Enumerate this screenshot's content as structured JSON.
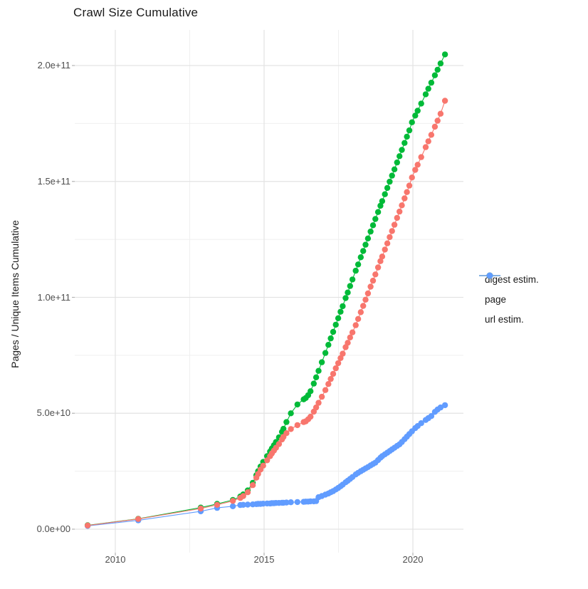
{
  "title": "Crawl Size Cumulative",
  "y_axis": {
    "label": "Pages / Unique Items Cumulative",
    "tick_labels": [
      "0.0e+00",
      "5.0e+10",
      "1.0e+11",
      "1.5e+11",
      "2.0e+11"
    ],
    "tick_values_e9": [
      0,
      50,
      100,
      150,
      200
    ],
    "minor_values_e9": [
      25,
      75,
      125,
      175
    ]
  },
  "x_axis": {
    "tick_labels": [
      "2010",
      "2015",
      "2020"
    ],
    "tick_values": [
      2010,
      2015,
      2020
    ],
    "minor_values": [
      2012.5,
      2017.5
    ]
  },
  "legend": {
    "entries": [
      {
        "label": "digest estim.",
        "color": "#F8766D",
        "series": "digest"
      },
      {
        "label": "page",
        "color": "#00BA38",
        "series": "page"
      },
      {
        "label": "url estim.",
        "color": "#619CFF",
        "series": "url"
      }
    ]
  },
  "colors": {
    "background": "#ffffff",
    "grid_major": "#e3e3e3",
    "grid_minor": "#efefef",
    "tick_mark": "#b3b3b3",
    "tick_text": "#4d4d4d",
    "text": "#1a1a1a",
    "digest": "#F8766D",
    "page": "#00BA38",
    "url": "#619CFF"
  },
  "chart_data": {
    "type": "line",
    "title": "Crawl Size Cumulative",
    "xlabel": "",
    "ylabel": "Pages / Unique Items Cumulative",
    "value_unit": "1e9 (billions); y axis shown as scientific notation",
    "x_range": [
      2008.6,
      2021.75
    ],
    "y_range_e9": [
      -10,
      215
    ],
    "grid": "on",
    "legend_position": "right-middle",
    "marker": "point",
    "draw_order": [
      "page",
      "url",
      "digest"
    ],
    "series": [
      {
        "name": "page",
        "color": "#00BA38",
        "points": [
          [
            2009.07,
            1.7
          ],
          [
            2010.77,
            4.5
          ],
          [
            2012.87,
            9.3
          ],
          [
            2013.42,
            10.9
          ],
          [
            2013.95,
            12.6
          ],
          [
            2014.2,
            14.1
          ],
          [
            2014.3,
            15.0
          ],
          [
            2014.45,
            16.7
          ],
          [
            2014.62,
            20.0
          ],
          [
            2014.74,
            23.3
          ],
          [
            2014.8,
            25.0
          ],
          [
            2014.88,
            27.0
          ],
          [
            2014.97,
            29.0
          ],
          [
            2015.1,
            31.5
          ],
          [
            2015.2,
            33.5
          ],
          [
            2015.26,
            34.8
          ],
          [
            2015.33,
            36.2
          ],
          [
            2015.4,
            37.6
          ],
          [
            2015.5,
            39.6
          ],
          [
            2015.6,
            42.0
          ],
          [
            2015.65,
            43.3
          ],
          [
            2015.75,
            46.2
          ],
          [
            2015.9,
            50.0
          ],
          [
            2016.12,
            53.8
          ],
          [
            2016.33,
            56.0
          ],
          [
            2016.4,
            56.6
          ],
          [
            2016.48,
            57.8
          ],
          [
            2016.56,
            59.5
          ],
          [
            2016.67,
            62.8
          ],
          [
            2016.75,
            65.5
          ],
          [
            2016.83,
            68.3
          ],
          [
            2016.94,
            72.0
          ],
          [
            2017.06,
            76.0
          ],
          [
            2017.16,
            79.5
          ],
          [
            2017.24,
            82.3
          ],
          [
            2017.32,
            85.1
          ],
          [
            2017.41,
            88.2
          ],
          [
            2017.49,
            91.0
          ],
          [
            2017.57,
            93.8
          ],
          [
            2017.64,
            96.2
          ],
          [
            2017.74,
            99.7
          ],
          [
            2017.81,
            102.1
          ],
          [
            2017.89,
            104.9
          ],
          [
            2017.97,
            107.7
          ],
          [
            2018.08,
            111.5
          ],
          [
            2018.16,
            114.2
          ],
          [
            2018.25,
            117.3
          ],
          [
            2018.33,
            120.0
          ],
          [
            2018.41,
            122.7
          ],
          [
            2018.49,
            125.4
          ],
          [
            2018.58,
            128.4
          ],
          [
            2018.66,
            131.1
          ],
          [
            2018.74,
            133.8
          ],
          [
            2018.83,
            136.8
          ],
          [
            2018.91,
            139.5
          ],
          [
            2018.97,
            141.5
          ],
          [
            2019.06,
            144.5
          ],
          [
            2019.14,
            147.2
          ],
          [
            2019.22,
            149.9
          ],
          [
            2019.3,
            152.5
          ],
          [
            2019.38,
            155.2
          ],
          [
            2019.47,
            158.2
          ],
          [
            2019.55,
            160.9
          ],
          [
            2019.63,
            163.6
          ],
          [
            2019.72,
            166.6
          ],
          [
            2019.8,
            169.3
          ],
          [
            2019.88,
            172.0
          ],
          [
            2019.97,
            175.5
          ],
          [
            2020.08,
            178.4
          ],
          [
            2020.16,
            180.5
          ],
          [
            2020.28,
            183.6
          ],
          [
            2020.43,
            187.6
          ],
          [
            2020.52,
            190.0
          ],
          [
            2020.62,
            192.6
          ],
          [
            2020.74,
            195.8
          ],
          [
            2020.83,
            198.2
          ],
          [
            2020.93,
            200.9
          ],
          [
            2021.08,
            204.8
          ]
        ]
      },
      {
        "name": "digest estim.",
        "color": "#F8766D",
        "points": [
          [
            2009.07,
            1.6
          ],
          [
            2010.77,
            4.4
          ],
          [
            2012.87,
            8.9
          ],
          [
            2013.42,
            10.5
          ],
          [
            2013.95,
            12.2
          ],
          [
            2014.2,
            13.5
          ],
          [
            2014.3,
            14.3
          ],
          [
            2014.45,
            15.9
          ],
          [
            2014.62,
            19.0
          ],
          [
            2014.74,
            22.2
          ],
          [
            2014.8,
            23.8
          ],
          [
            2014.88,
            25.7
          ],
          [
            2014.97,
            27.4
          ],
          [
            2015.1,
            29.7
          ],
          [
            2015.2,
            31.5
          ],
          [
            2015.26,
            32.7
          ],
          [
            2015.33,
            33.9
          ],
          [
            2015.4,
            35.1
          ],
          [
            2015.5,
            36.7
          ],
          [
            2015.6,
            38.7
          ],
          [
            2015.65,
            39.8
          ],
          [
            2015.75,
            41.4
          ],
          [
            2015.9,
            43.2
          ],
          [
            2016.12,
            44.9
          ],
          [
            2016.33,
            46.2
          ],
          [
            2016.4,
            46.5
          ],
          [
            2016.48,
            47.4
          ],
          [
            2016.56,
            48.5
          ],
          [
            2016.67,
            50.7
          ],
          [
            2016.75,
            52.5
          ],
          [
            2016.83,
            54.5
          ],
          [
            2016.94,
            57.1
          ],
          [
            2017.06,
            60.0
          ],
          [
            2017.16,
            62.6
          ],
          [
            2017.24,
            64.8
          ],
          [
            2017.32,
            67.0
          ],
          [
            2017.41,
            69.4
          ],
          [
            2017.49,
            71.6
          ],
          [
            2017.57,
            73.8
          ],
          [
            2017.64,
            75.7
          ],
          [
            2017.74,
            78.5
          ],
          [
            2017.81,
            80.4
          ],
          [
            2017.89,
            82.7
          ],
          [
            2017.97,
            84.9
          ],
          [
            2018.08,
            88.0
          ],
          [
            2018.16,
            90.7
          ],
          [
            2018.25,
            93.6
          ],
          [
            2018.33,
            96.3
          ],
          [
            2018.41,
            99.0
          ],
          [
            2018.49,
            101.7
          ],
          [
            2018.58,
            104.6
          ],
          [
            2018.66,
            107.2
          ],
          [
            2018.74,
            109.9
          ],
          [
            2018.83,
            112.9
          ],
          [
            2018.91,
            115.6
          ],
          [
            2018.97,
            117.6
          ],
          [
            2019.06,
            120.6
          ],
          [
            2019.14,
            123.3
          ],
          [
            2019.22,
            126.0
          ],
          [
            2019.3,
            128.6
          ],
          [
            2019.38,
            131.3
          ],
          [
            2019.47,
            134.3
          ],
          [
            2019.55,
            137.0
          ],
          [
            2019.63,
            139.7
          ],
          [
            2019.72,
            142.7
          ],
          [
            2019.8,
            145.4
          ],
          [
            2019.88,
            148.2
          ],
          [
            2019.97,
            151.7
          ],
          [
            2020.08,
            155.0
          ],
          [
            2020.16,
            157.2
          ],
          [
            2020.28,
            160.5
          ],
          [
            2020.43,
            164.8
          ],
          [
            2020.52,
            167.3
          ],
          [
            2020.62,
            170.1
          ],
          [
            2020.74,
            173.6
          ],
          [
            2020.83,
            176.2
          ],
          [
            2020.93,
            179.2
          ],
          [
            2021.08,
            184.8
          ]
        ]
      },
      {
        "name": "url estim.",
        "color": "#619CFF",
        "points": [
          [
            2009.07,
            1.4
          ],
          [
            2010.77,
            3.8
          ],
          [
            2012.87,
            7.7
          ],
          [
            2013.42,
            9.2
          ],
          [
            2013.95,
            9.9
          ],
          [
            2014.2,
            10.4
          ],
          [
            2014.3,
            10.5
          ],
          [
            2014.45,
            10.6
          ],
          [
            2014.62,
            10.7
          ],
          [
            2014.74,
            10.8
          ],
          [
            2014.8,
            10.9
          ],
          [
            2014.88,
            10.9
          ],
          [
            2014.97,
            11.0
          ],
          [
            2015.1,
            11.1
          ],
          [
            2015.2,
            11.1
          ],
          [
            2015.26,
            11.2
          ],
          [
            2015.33,
            11.2
          ],
          [
            2015.4,
            11.3
          ],
          [
            2015.5,
            11.3
          ],
          [
            2015.6,
            11.4
          ],
          [
            2015.65,
            11.4
          ],
          [
            2015.75,
            11.5
          ],
          [
            2015.9,
            11.6
          ],
          [
            2016.12,
            11.7
          ],
          [
            2016.33,
            11.8
          ],
          [
            2016.4,
            11.9
          ],
          [
            2016.48,
            11.9
          ],
          [
            2016.56,
            12.0
          ],
          [
            2016.67,
            12.0
          ],
          [
            2016.75,
            12.1
          ],
          [
            2016.83,
            13.8
          ],
          [
            2016.94,
            14.3
          ],
          [
            2017.06,
            14.9
          ],
          [
            2017.16,
            15.4
          ],
          [
            2017.24,
            15.9
          ],
          [
            2017.32,
            16.4
          ],
          [
            2017.41,
            17.1
          ],
          [
            2017.49,
            17.8
          ],
          [
            2017.57,
            18.5
          ],
          [
            2017.64,
            19.2
          ],
          [
            2017.74,
            20.2
          ],
          [
            2017.81,
            20.9
          ],
          [
            2017.89,
            21.7
          ],
          [
            2017.97,
            22.5
          ],
          [
            2018.08,
            23.6
          ],
          [
            2018.16,
            24.3
          ],
          [
            2018.25,
            25.0
          ],
          [
            2018.33,
            25.6
          ],
          [
            2018.41,
            26.2
          ],
          [
            2018.49,
            26.8
          ],
          [
            2018.58,
            27.5
          ],
          [
            2018.66,
            28.1
          ],
          [
            2018.74,
            28.7
          ],
          [
            2018.83,
            29.8
          ],
          [
            2018.91,
            30.8
          ],
          [
            2018.97,
            31.5
          ],
          [
            2019.06,
            32.3
          ],
          [
            2019.14,
            33.0
          ],
          [
            2019.22,
            33.7
          ],
          [
            2019.3,
            34.4
          ],
          [
            2019.38,
            35.1
          ],
          [
            2019.47,
            35.9
          ],
          [
            2019.55,
            36.6
          ],
          [
            2019.63,
            37.6
          ],
          [
            2019.72,
            38.8
          ],
          [
            2019.8,
            39.9
          ],
          [
            2019.88,
            41.0
          ],
          [
            2019.97,
            42.2
          ],
          [
            2020.08,
            43.6
          ],
          [
            2020.16,
            44.5
          ],
          [
            2020.28,
            45.7
          ],
          [
            2020.43,
            47.1
          ],
          [
            2020.52,
            47.9
          ],
          [
            2020.62,
            48.8
          ],
          [
            2020.74,
            50.6
          ],
          [
            2020.83,
            51.6
          ],
          [
            2020.93,
            52.5
          ],
          [
            2021.08,
            53.5
          ]
        ]
      }
    ]
  }
}
